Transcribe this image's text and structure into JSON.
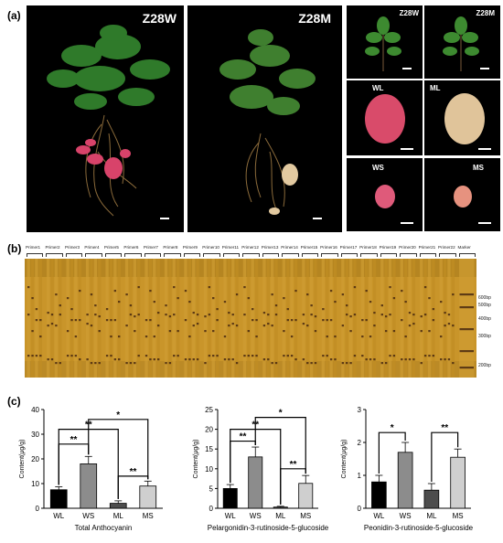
{
  "panel_labels": {
    "a": "(a)",
    "b": "(b)",
    "c": "(c)"
  },
  "photos": {
    "plant_w": "Z28W",
    "plant_m": "Z28M",
    "leaf_w": "Z28W",
    "leaf_m": "Z28M",
    "tuber_wl": "WL",
    "tuber_ml": "ML",
    "tuber_ws": "WS",
    "tuber_ms": "MS"
  },
  "gel": {
    "primers": [
      "Primer1",
      "Primer2",
      "Primer3",
      "Primer4",
      "Primer5",
      "Primer6",
      "Primer7",
      "Primer8",
      "Primer9",
      "Primer10",
      "Primer11",
      "Primer12",
      "Primer13",
      "Primer14",
      "Primer15",
      "Primer16",
      "Primer17",
      "Primer18",
      "Primer19",
      "Primer20",
      "Primer21",
      "Primer22",
      "Marker"
    ],
    "marker_sizes": [
      "600bp",
      "500bp",
      "400bp",
      "300bp",
      "200bp"
    ]
  },
  "chart_data": [
    {
      "type": "bar",
      "xlabel": "Total Anthocyanin",
      "ylabel": "Content(μg/g)",
      "categories": [
        "WL",
        "WS",
        "ML",
        "MS"
      ],
      "values": [
        7.5,
        18,
        2,
        9
      ],
      "errors": [
        1.2,
        3,
        1,
        2
      ],
      "ylim": [
        0,
        40
      ],
      "yticks": [
        "0",
        "10",
        "20",
        "30",
        "40"
      ],
      "colors": [
        "#000000",
        "#8c8c8c",
        "#4d4d4d",
        "#cfcfcf"
      ],
      "significance": [
        "**",
        "**",
        "*",
        "**"
      ]
    },
    {
      "type": "bar",
      "xlabel": "Pelargonidin-3-rutinoside-5-glucoside",
      "ylabel": "Content(μg/g)",
      "categories": [
        "WL",
        "WS",
        "ML",
        "MS"
      ],
      "values": [
        5,
        13,
        0.3,
        6.3
      ],
      "errors": [
        1,
        2.5,
        0.2,
        2
      ],
      "ylim": [
        0,
        25
      ],
      "yticks": [
        "0",
        "5",
        "10",
        "15",
        "20",
        "25"
      ],
      "colors": [
        "#000000",
        "#8c8c8c",
        "#4d4d4d",
        "#cfcfcf"
      ],
      "significance": [
        "**",
        "**",
        "*",
        "**"
      ]
    },
    {
      "type": "bar",
      "xlabel": "Peonidin-3-rutinoside-5-glucoside",
      "ylabel": "Content(μg/g)",
      "categories": [
        "WL",
        "WS",
        "ML",
        "MS"
      ],
      "values": [
        0.8,
        1.7,
        0.55,
        1.55
      ],
      "errors": [
        0.2,
        0.3,
        0.2,
        0.25
      ],
      "ylim": [
        0,
        3
      ],
      "yticks": [
        "0",
        "1",
        "2",
        "3"
      ],
      "colors": [
        "#000000",
        "#8c8c8c",
        "#4d4d4d",
        "#cfcfcf"
      ],
      "significance": [
        "*",
        "**"
      ]
    }
  ]
}
